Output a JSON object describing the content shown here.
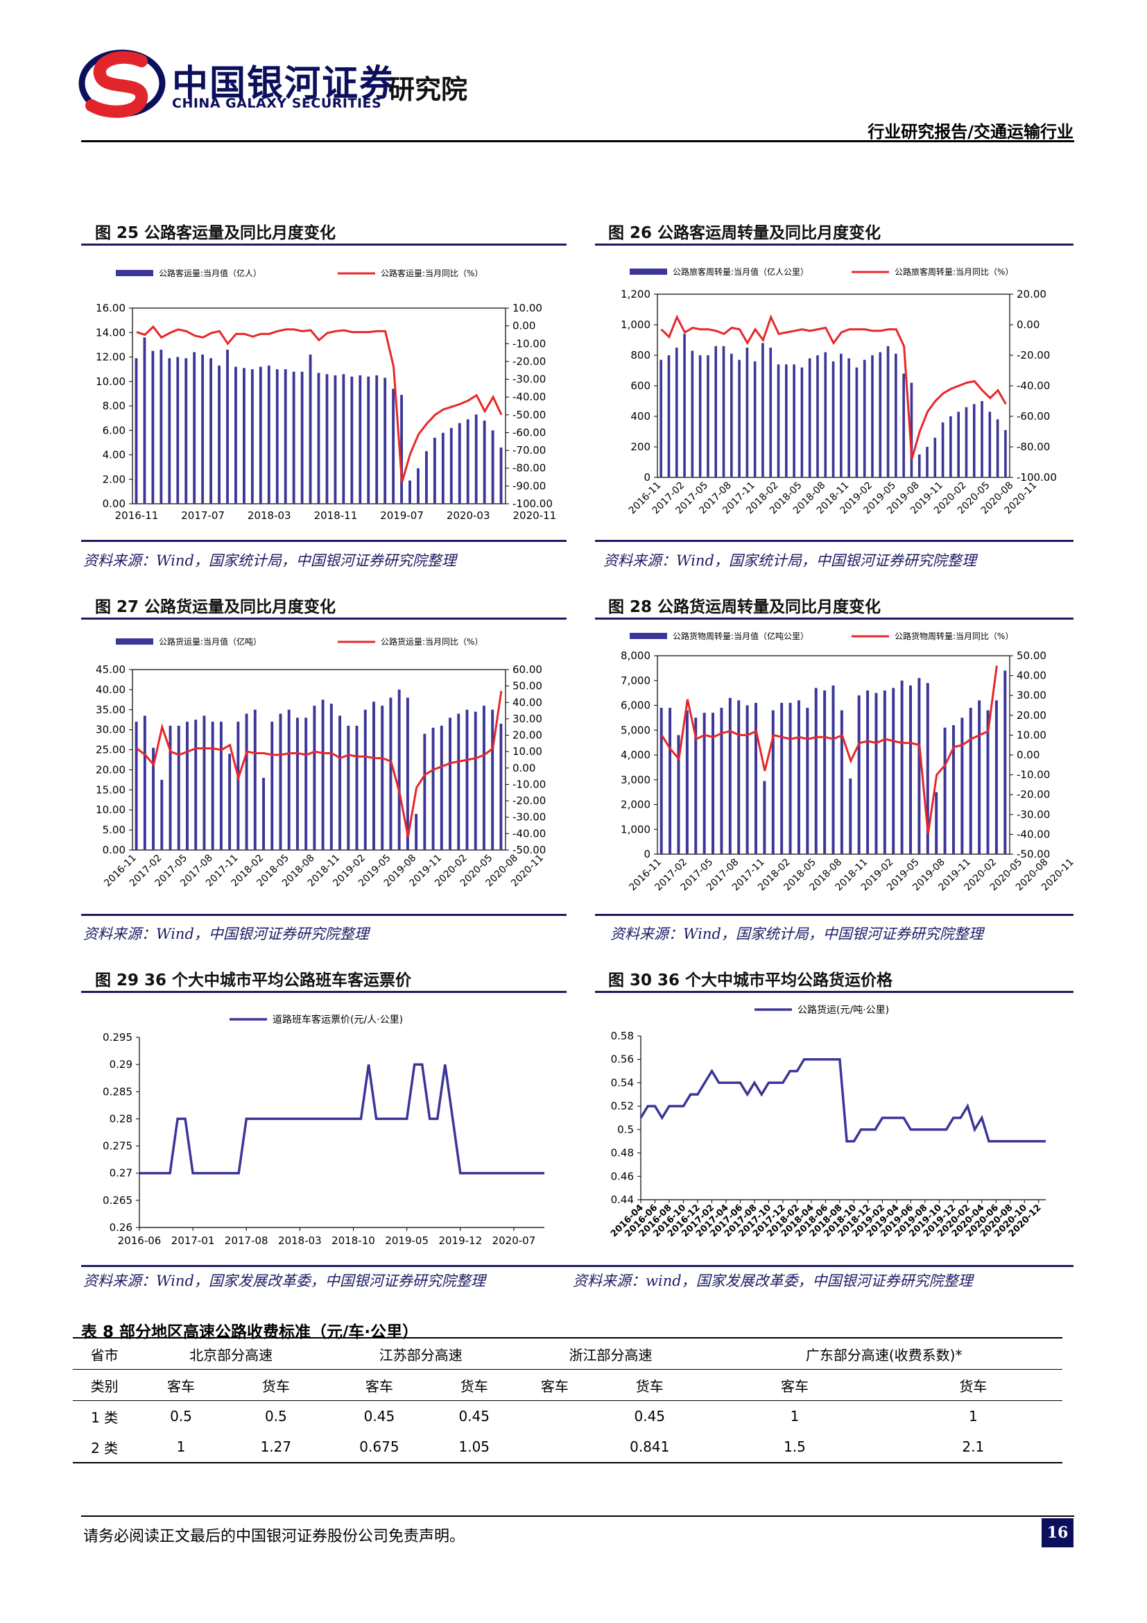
{
  "header": {
    "brand_cn": "中国银河证券",
    "brand_en": "CHINA GALAXY SECURITIES",
    "institute": "研究院",
    "report_type": "行业研究报告/交通运输行业"
  },
  "figures": [
    {
      "title": "图 25 公路客运量及同比月度变化",
      "source": "资料来源：Wind，国家统计局，中国银河证券研究院整理"
    },
    {
      "title": "图 26 公路客运周转量及同比月度变化",
      "source": "资料来源：Wind，国家统计局，中国银河证券研究院整理"
    },
    {
      "title": "图 27 公路货运量及同比月度变化",
      "source": "资料来源：Wind，中国银河证券研究院整理"
    },
    {
      "title": "图 28 公路货运周转量及同比月度变化",
      "source": "资料来源：Wind，国家统计局，中国银河证券研究院整理"
    },
    {
      "title": "图 29 36 个大中城市平均公路班车客运票价",
      "source": "资料来源：Wind，国家发展改革委，中国银河证券研究院整理"
    },
    {
      "title": "图 30 36 个大中城市平均公路货运价格",
      "source": "资料来源：wind，国家发展改革委，中国银河证券研究院整理"
    }
  ],
  "chart_data": [
    {
      "type": "bar+line",
      "bar_name": "公路客运量:当月值（亿人）",
      "line_name": "公路客运量:当月同比（%）",
      "bar_color": "#3b3697",
      "line_color": "#e8262a",
      "ylim_left": [
        0,
        16
      ],
      "yticks_left": [
        "0.00",
        "2.00",
        "4.00",
        "6.00",
        "8.00",
        "10.00",
        "12.00",
        "14.00",
        "16.00"
      ],
      "ylim_right": [
        -100,
        10
      ],
      "yticks_right": [
        "-100.00",
        "-90.00",
        "-80.00",
        "-70.00",
        "-60.00",
        "-50.00",
        "-40.00",
        "-30.00",
        "-20.00",
        "-10.00",
        "0.00",
        "10.00"
      ],
      "xticks": [
        {
          "i": 0,
          "label": "2016-11"
        },
        {
          "i": 8,
          "label": "2017-07"
        },
        {
          "i": 16,
          "label": "2018-03"
        },
        {
          "i": 24,
          "label": "2018-11"
        },
        {
          "i": 32,
          "label": "2019-07"
        },
        {
          "i": 40,
          "label": "2020-03"
        },
        {
          "i": 48,
          "label": "2020-11"
        }
      ],
      "x_rotate": false,
      "bars": [
        11.9,
        13.6,
        12.5,
        12.6,
        11.9,
        12.0,
        11.9,
        12.4,
        12.2,
        11.9,
        11.3,
        12.6,
        11.2,
        11.1,
        11.0,
        11.2,
        11.3,
        11.0,
        11.0,
        10.8,
        10.8,
        12.2,
        10.7,
        10.6,
        10.5,
        10.6,
        10.4,
        10.5,
        10.4,
        10.5,
        10.3,
        9.4,
        8.9,
        1.9,
        2.9,
        4.3,
        5.4,
        5.8,
        6.2,
        6.6,
        6.9,
        7.3,
        6.8,
        6.0,
        4.6
      ],
      "line": [
        -3.5,
        -5.0,
        -0.5,
        -6.5,
        -4.0,
        -2.0,
        -3.0,
        -5.5,
        -6.5,
        -4.0,
        -3.0,
        -10.0,
        -4.5,
        -4.5,
        -6.0,
        -4.5,
        -4.5,
        -3.0,
        -2.0,
        -2.0,
        -3.0,
        -2.5,
        -8.0,
        -4.0,
        -3.0,
        -2.5,
        -3.5,
        -3.5,
        -3.5,
        -3.0,
        -3.0,
        -23.0,
        -88.0,
        -72.0,
        -61.0,
        -55.0,
        -50.0,
        -47.0,
        -45.5,
        -44.0,
        -42.0,
        -39.0,
        -48.0,
        -40.0,
        -50.0
      ]
    },
    {
      "type": "bar+line",
      "bar_name": "公路旅客周转量:当月值（亿人公里）",
      "line_name": "公路旅客周转量:当月同比（%）",
      "bar_color": "#3b3697",
      "line_color": "#e8262a",
      "ylim_left": [
        0,
        1200
      ],
      "yticks_left": [
        "0",
        "200",
        "400",
        "600",
        "800",
        "1,000",
        "1,200"
      ],
      "ylim_right": [
        -100,
        20
      ],
      "yticks_right": [
        "-100.00",
        "-80.00",
        "-60.00",
        "-40.00",
        "-20.00",
        "0.00",
        "20.00"
      ],
      "xticks": [
        {
          "i": 0,
          "label": "2016-11"
        },
        {
          "i": 3,
          "label": "2017-02"
        },
        {
          "i": 6,
          "label": "2017-05"
        },
        {
          "i": 9,
          "label": "2017-08"
        },
        {
          "i": 12,
          "label": "2017-11"
        },
        {
          "i": 15,
          "label": "2018-02"
        },
        {
          "i": 18,
          "label": "2018-05"
        },
        {
          "i": 21,
          "label": "2018-08"
        },
        {
          "i": 24,
          "label": "2018-11"
        },
        {
          "i": 27,
          "label": "2019-02"
        },
        {
          "i": 30,
          "label": "2019-05"
        },
        {
          "i": 33,
          "label": "2019-08"
        },
        {
          "i": 36,
          "label": "2019-11"
        },
        {
          "i": 39,
          "label": "2020-02"
        },
        {
          "i": 42,
          "label": "2020-05"
        },
        {
          "i": 45,
          "label": "2020-08"
        },
        {
          "i": 48,
          "label": "2020-11"
        }
      ],
      "x_rotate": true,
      "bars": [
        770,
        800,
        850,
        940,
        830,
        800,
        800,
        860,
        860,
        810,
        770,
        850,
        760,
        880,
        850,
        740,
        740,
        740,
        720,
        780,
        800,
        820,
        760,
        810,
        780,
        720,
        770,
        800,
        820,
        860,
        810,
        680,
        620,
        150,
        200,
        260,
        360,
        400,
        430,
        460,
        480,
        500,
        430,
        380,
        310
      ],
      "line": [
        -3,
        -8,
        5,
        -5,
        -2,
        -3,
        -3,
        -4,
        -6,
        -2,
        -3,
        -12,
        -3,
        -10,
        5,
        -6,
        -5,
        -4,
        -3,
        -4,
        -3,
        -2,
        -12,
        -5,
        -3,
        -3,
        -3,
        -4,
        -4,
        -3,
        -3,
        -14,
        -88,
        -70,
        -57,
        -50,
        -45,
        -42,
        -40,
        -38,
        -37,
        -43,
        -48,
        -43,
        -52
      ]
    },
    {
      "type": "bar+line",
      "bar_name": "公路货运量:当月值（亿吨）",
      "line_name": "公路货运量:当月同比（%）",
      "bar_color": "#3b3697",
      "line_color": "#e8262a",
      "ylim_left": [
        0,
        45
      ],
      "yticks_left": [
        "0.00",
        "5.00",
        "10.00",
        "15.00",
        "20.00",
        "25.00",
        "30.00",
        "35.00",
        "40.00",
        "45.00"
      ],
      "ylim_right": [
        -50,
        60
      ],
      "yticks_right": [
        "-50.00",
        "-40.00",
        "-30.00",
        "-20.00",
        "-10.00",
        "0.00",
        "10.00",
        "20.00",
        "30.00",
        "40.00",
        "50.00",
        "60.00"
      ],
      "xticks": [
        {
          "i": 0,
          "label": "2016-11"
        },
        {
          "i": 3,
          "label": "2017-02"
        },
        {
          "i": 6,
          "label": "2017-05"
        },
        {
          "i": 9,
          "label": "2017-08"
        },
        {
          "i": 12,
          "label": "2017-11"
        },
        {
          "i": 15,
          "label": "2018-02"
        },
        {
          "i": 18,
          "label": "2018-05"
        },
        {
          "i": 21,
          "label": "2018-08"
        },
        {
          "i": 24,
          "label": "2018-11"
        },
        {
          "i": 27,
          "label": "2019-02"
        },
        {
          "i": 30,
          "label": "2019-05"
        },
        {
          "i": 33,
          "label": "2019-08"
        },
        {
          "i": 36,
          "label": "2019-11"
        },
        {
          "i": 39,
          "label": "2020-02"
        },
        {
          "i": 42,
          "label": "2020-05"
        },
        {
          "i": 45,
          "label": "2020-08"
        },
        {
          "i": 48,
          "label": "2020-11"
        }
      ],
      "x_rotate": true,
      "bars": [
        32,
        33.5,
        25.5,
        17.5,
        31,
        31,
        32,
        32.5,
        33.5,
        32,
        32,
        24,
        32,
        34,
        35,
        18,
        32,
        34,
        35,
        33,
        33,
        36,
        37.5,
        36.5,
        33.5,
        31,
        31,
        35,
        37,
        36,
        38,
        40,
        38,
        9,
        29,
        30.5,
        31,
        33,
        34,
        35,
        34.5,
        36,
        35,
        31.5
      ],
      "line": [
        12,
        8,
        2,
        25,
        10,
        8,
        10,
        12,
        12,
        12,
        11,
        14,
        -6,
        10,
        9,
        9,
        8,
        8,
        9,
        9,
        8,
        10,
        9,
        9,
        6,
        8,
        7,
        7,
        6,
        6,
        4,
        -15,
        -42,
        -12,
        -4,
        -1,
        1,
        3,
        4,
        5,
        6,
        8,
        12,
        47
      ],
      "note": "series length reflects legible bars"
    },
    {
      "type": "bar+line",
      "bar_name": "公路货物周转量:当月值（亿吨公里）",
      "line_name": "公路货物周转量:当月同比（%）",
      "bar_color": "#3b3697",
      "line_color": "#e8262a",
      "ylim_left": [
        0,
        8000
      ],
      "yticks_left": [
        "0",
        "1,000",
        "2,000",
        "3,000",
        "4,000",
        "5,000",
        "6,000",
        "7,000",
        "8,000"
      ],
      "ylim_right": [
        -50,
        50
      ],
      "yticks_right": [
        "-50.00",
        "-40.00",
        "-30.00",
        "-20.00",
        "-10.00",
        "0.00",
        "10.00",
        "20.00",
        "30.00",
        "40.00",
        "50.00"
      ],
      "xticks": [
        {
          "i": 0,
          "label": "2016-11"
        },
        {
          "i": 3,
          "label": "2017-02"
        },
        {
          "i": 6,
          "label": "2017-05"
        },
        {
          "i": 9,
          "label": "2017-08"
        },
        {
          "i": 12,
          "label": "2017-11"
        },
        {
          "i": 15,
          "label": "2018-02"
        },
        {
          "i": 18,
          "label": "2018-05"
        },
        {
          "i": 21,
          "label": "2018-08"
        },
        {
          "i": 24,
          "label": "2018-11"
        },
        {
          "i": 27,
          "label": "2019-02"
        },
        {
          "i": 30,
          "label": "2019-05"
        },
        {
          "i": 33,
          "label": "2019-08"
        },
        {
          "i": 36,
          "label": "2019-11"
        },
        {
          "i": 39,
          "label": "2020-02"
        },
        {
          "i": 42,
          "label": "2020-05"
        },
        {
          "i": 45,
          "label": "2020-08"
        },
        {
          "i": 48,
          "label": "2020-11"
        }
      ],
      "x_rotate": true,
      "bars": [
        5900,
        5900,
        4800,
        5800,
        5500,
        5700,
        5700,
        5900,
        6300,
        6200,
        6000,
        6100,
        2950,
        5800,
        6100,
        6100,
        6200,
        5900,
        6700,
        6600,
        6800,
        5800,
        3050,
        6400,
        6600,
        6500,
        6600,
        6700,
        7000,
        6800,
        7100,
        6900,
        2500,
        5100,
        5200,
        5500,
        5900,
        6200,
        5800,
        6200,
        7400
      ],
      "line": [
        10,
        3,
        -2,
        28,
        8,
        10,
        9,
        11,
        12,
        10,
        10,
        12,
        -8,
        10,
        9,
        8,
        9,
        8,
        9,
        9,
        8,
        10,
        -3,
        6,
        7,
        6,
        8,
        7,
        6,
        6,
        5,
        -40,
        -10,
        -5,
        4,
        5,
        8,
        10,
        12,
        45
      ]
    },
    {
      "type": "line",
      "series_name": "道路班车客运票价(元/人·公里)",
      "line_color": "#3b3697",
      "ylim": [
        0.26,
        0.295
      ],
      "yticks": [
        "0.26",
        "0.265",
        "0.27",
        "0.275",
        "0.28",
        "0.285",
        "0.29",
        "0.295"
      ],
      "xticks": [
        {
          "i": 0,
          "label": "2016-06"
        },
        {
          "i": 7,
          "label": "2017-01"
        },
        {
          "i": 14,
          "label": "2017-08"
        },
        {
          "i": 21,
          "label": "2018-03"
        },
        {
          "i": 28,
          "label": "2018-10"
        },
        {
          "i": 35,
          "label": "2019-05"
        },
        {
          "i": 42,
          "label": "2019-12"
        },
        {
          "i": 49,
          "label": "2020-07"
        }
      ],
      "values": [
        0.27,
        0.27,
        0.27,
        0.27,
        0.27,
        0.28,
        0.28,
        0.27,
        0.27,
        0.27,
        0.27,
        0.27,
        0.27,
        0.27,
        0.28,
        0.28,
        0.28,
        0.28,
        0.28,
        0.28,
        0.28,
        0.28,
        0.28,
        0.28,
        0.28,
        0.28,
        0.28,
        0.28,
        0.28,
        0.28,
        0.29,
        0.28,
        0.28,
        0.28,
        0.28,
        0.28,
        0.29,
        0.29,
        0.28,
        0.28,
        0.29,
        0.28,
        0.27,
        0.27,
        0.27,
        0.27,
        0.27,
        0.27,
        0.27,
        0.27,
        0.27,
        0.27,
        0.27,
        0.27
      ]
    },
    {
      "type": "line",
      "series_name": "公路货运(元/吨·公里)",
      "line_color": "#3b3697",
      "ylim": [
        0.44,
        0.58
      ],
      "yticks": [
        "0.44",
        "0.46",
        "0.48",
        "0.5",
        "0.52",
        "0.54",
        "0.56",
        "0.58"
      ],
      "xticks": [
        {
          "i": 0,
          "label": "2016-04"
        },
        {
          "i": 2,
          "label": "2016-06"
        },
        {
          "i": 4,
          "label": "2016-08"
        },
        {
          "i": 6,
          "label": "2016-10"
        },
        {
          "i": 8,
          "label": "2016-12"
        },
        {
          "i": 10,
          "label": "2017-02"
        },
        {
          "i": 12,
          "label": "2017-04"
        },
        {
          "i": 14,
          "label": "2017-06"
        },
        {
          "i": 16,
          "label": "2017-08"
        },
        {
          "i": 18,
          "label": "2017-10"
        },
        {
          "i": 20,
          "label": "2017-12"
        },
        {
          "i": 22,
          "label": "2018-02"
        },
        {
          "i": 24,
          "label": "2018-04"
        },
        {
          "i": 26,
          "label": "2018-06"
        },
        {
          "i": 28,
          "label": "2018-08"
        },
        {
          "i": 30,
          "label": "2018-10"
        },
        {
          "i": 32,
          "label": "2018-12"
        },
        {
          "i": 34,
          "label": "2019-02"
        },
        {
          "i": 36,
          "label": "2019-04"
        },
        {
          "i": 38,
          "label": "2019-06"
        },
        {
          "i": 40,
          "label": "2019-08"
        },
        {
          "i": 42,
          "label": "2019-10"
        },
        {
          "i": 44,
          "label": "2019-12"
        },
        {
          "i": 46,
          "label": "2020-02"
        },
        {
          "i": 48,
          "label": "2020-04"
        },
        {
          "i": 50,
          "label": "2020-06"
        },
        {
          "i": 52,
          "label": "2020-08"
        },
        {
          "i": 54,
          "label": "2020-10"
        },
        {
          "i": 56,
          "label": "2020-12"
        }
      ],
      "values": [
        0.51,
        0.52,
        0.52,
        0.51,
        0.52,
        0.52,
        0.52,
        0.53,
        0.53,
        0.54,
        0.55,
        0.54,
        0.54,
        0.54,
        0.54,
        0.53,
        0.54,
        0.53,
        0.54,
        0.54,
        0.54,
        0.55,
        0.55,
        0.56,
        0.56,
        0.56,
        0.56,
        0.56,
        0.56,
        0.49,
        0.49,
        0.5,
        0.5,
        0.5,
        0.51,
        0.51,
        0.51,
        0.51,
        0.5,
        0.5,
        0.5,
        0.5,
        0.5,
        0.5,
        0.51,
        0.51,
        0.52,
        0.5,
        0.51,
        0.49,
        0.49,
        0.49,
        0.49,
        0.49,
        0.49,
        0.49,
        0.49,
        0.49
      ]
    }
  ],
  "table": {
    "title": "表 8 部分地区高速公路收费标准（元/车·公里）",
    "header1": [
      "省市",
      "北京部分高速",
      "江苏部分高速",
      "浙江部分高速",
      "广东部分高速(收费系数)*"
    ],
    "header2": [
      "类别",
      "客车",
      "货车",
      "客车",
      "货车",
      "客车",
      "货车",
      "客车",
      "货车"
    ],
    "rows": [
      [
        "1 类",
        "0.5",
        "0.5",
        "0.45",
        "0.45",
        "",
        "0.45",
        "1",
        "1"
      ],
      [
        "2 类",
        "1",
        "1.27",
        "0.675",
        "1.05",
        "",
        "0.841",
        "1.5",
        "2.1"
      ]
    ]
  },
  "footer": {
    "disclaimer": "请务必阅读正文最后的中国银河证券股份公司免责声明。",
    "page": "16"
  }
}
